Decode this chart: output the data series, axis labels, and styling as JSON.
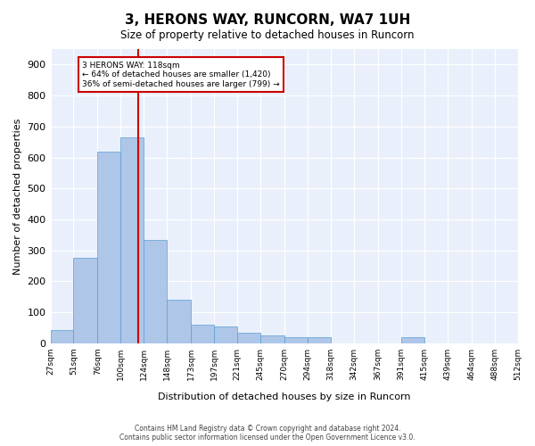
{
  "title": "3, HERONS WAY, RUNCORN, WA7 1UH",
  "subtitle": "Size of property relative to detached houses in Runcorn",
  "xlabel": "Distribution of detached houses by size in Runcorn",
  "ylabel": "Number of detached properties",
  "bar_color": "#aec6e8",
  "bar_edge_color": "#5a9fd4",
  "background_color": "#ffffff",
  "plot_bg_color": "#eaf0fb",
  "grid_color": "#ffffff",
  "annotation_line_color": "#cc0000",
  "annotation_box_color": "#cc0000",
  "annotation_text": "3 HERONS WAY: 118sqm\n← 64% of detached houses are smaller (1,420)\n36% of semi-detached houses are larger (799) →",
  "property_size": 118,
  "bin_edges": [
    27,
    51,
    76,
    100,
    124,
    148,
    173,
    197,
    221,
    245,
    270,
    294,
    318,
    342,
    367,
    391,
    415,
    439,
    464,
    488,
    512
  ],
  "bin_labels": [
    "27sqm",
    "51sqm",
    "76sqm",
    "100sqm",
    "124sqm",
    "148sqm",
    "173sqm",
    "197sqm",
    "221sqm",
    "245sqm",
    "270sqm",
    "294sqm",
    "318sqm",
    "342sqm",
    "367sqm",
    "391sqm",
    "415sqm",
    "439sqm",
    "464sqm",
    "488sqm",
    "512sqm"
  ],
  "bar_heights": [
    42,
    275,
    620,
    665,
    335,
    140,
    60,
    55,
    35,
    25,
    20,
    20,
    0,
    0,
    0,
    20,
    0,
    0,
    0,
    0
  ],
  "ylim": [
    0,
    950
  ],
  "yticks": [
    0,
    100,
    200,
    300,
    400,
    500,
    600,
    700,
    800,
    900
  ],
  "footnote": "Contains HM Land Registry data © Crown copyright and database right 2024.\nContains public sector information licensed under the Open Government Licence v3.0."
}
